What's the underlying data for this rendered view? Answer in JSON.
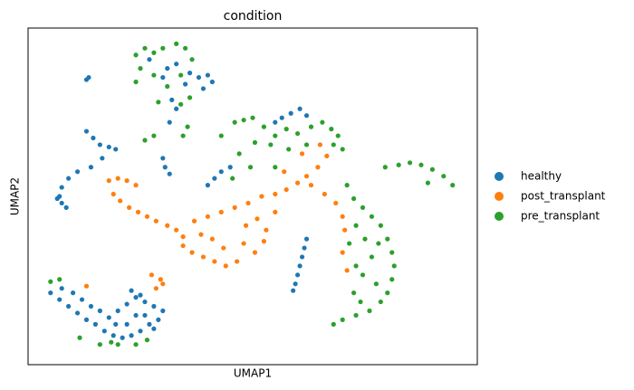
{
  "chart_data": {
    "type": "scatter",
    "title": "condition",
    "x_label": "UMAP1",
    "y_label": "UMAP2",
    "xlim": [
      0,
      20
    ],
    "ylim": [
      0,
      15
    ],
    "legend": "right",
    "series": [
      {
        "name": "healthy",
        "color": "#1f77b4",
        "x": [
          1.0,
          1.4,
          1.8,
          2.2,
          2.6,
          3.0,
          3.4,
          3.8,
          4.2,
          4.6,
          5.0,
          5.4,
          5.8,
          6.0,
          5.6,
          5.2,
          4.8,
          4.4,
          4.0,
          3.6,
          3.2,
          2.8,
          2.4,
          2.0,
          1.5,
          4.8,
          5.2,
          4.4,
          3.9,
          5.6,
          4.6,
          5.0,
          6.2,
          6.6,
          7.2,
          7.6,
          8.0,
          8.2,
          7.8,
          7.0,
          6.0,
          5.4,
          6.4,
          6.3,
          6.6,
          2.7,
          2.6,
          2.6,
          2.9,
          3.2,
          3.6,
          3.9,
          3.3,
          2.8,
          2.2,
          1.8,
          1.5,
          1.4,
          1.5,
          1.7,
          1.3,
          6.1,
          6.3,
          6.0,
          8.6,
          8.3,
          8.0,
          9.0,
          12.4,
          12.3,
          12.2,
          12.1,
          12.0,
          11.9,
          11.8,
          11.3,
          11.7,
          12.1,
          12.4,
          11.0
        ],
        "y": [
          3.2,
          2.9,
          2.6,
          2.3,
          2.0,
          1.8,
          1.5,
          1.3,
          1.2,
          1.3,
          1.5,
          1.8,
          2.0,
          2.4,
          2.6,
          2.8,
          3.0,
          2.7,
          2.4,
          2.1,
          2.4,
          2.6,
          2.9,
          3.2,
          3.4,
          2.2,
          2.2,
          1.8,
          1.8,
          1.6,
          3.3,
          3.1,
          13.2,
          13.4,
          13.0,
          12.8,
          12.9,
          12.6,
          12.3,
          12.5,
          12.8,
          13.6,
          11.8,
          10.8,
          11.4,
          12.8,
          12.7,
          10.4,
          10.1,
          9.8,
          9.7,
          9.6,
          9.2,
          8.8,
          8.6,
          8.3,
          7.9,
          7.5,
          7.2,
          7.0,
          7.4,
          8.8,
          8.5,
          9.2,
          8.6,
          8.3,
          8.0,
          8.8,
          5.6,
          5.2,
          4.8,
          4.4,
          4.0,
          3.6,
          3.3,
          11.0,
          11.2,
          11.4,
          11.1,
          10.8
        ]
      },
      {
        "name": "post_transplant",
        "color": "#ff7f0e",
        "x": [
          3.6,
          4.0,
          4.4,
          4.8,
          3.8,
          4.1,
          4.5,
          4.9,
          5.3,
          5.7,
          6.2,
          6.6,
          6.9,
          6.9,
          7.3,
          7.8,
          8.3,
          8.8,
          9.3,
          8.7,
          8.2,
          7.7,
          7.4,
          8.0,
          8.6,
          9.2,
          9.8,
          10.4,
          11.0,
          11.5,
          12.0,
          12.4,
          12.9,
          13.3,
          13.0,
          12.6,
          13.2,
          13.7,
          14.0,
          14.1,
          14.0,
          14.2,
          9.7,
          10.2,
          10.6,
          11.0,
          9.6,
          10.1,
          10.5,
          5.5,
          5.9,
          5.7,
          6.0,
          2.6,
          11.4,
          12.2
        ],
        "y": [
          8.2,
          8.3,
          8.2,
          8.0,
          7.6,
          7.3,
          7.0,
          6.8,
          6.6,
          6.4,
          6.2,
          6.0,
          5.7,
          5.3,
          5.0,
          4.8,
          4.6,
          4.4,
          4.6,
          5.2,
          5.6,
          5.8,
          6.4,
          6.6,
          6.8,
          7.0,
          7.2,
          7.5,
          7.6,
          7.8,
          8.1,
          8.4,
          8.8,
          9.3,
          9.8,
          8.0,
          7.6,
          7.2,
          6.6,
          6.0,
          5.0,
          4.2,
          6.2,
          6.5,
          6.0,
          6.8,
          5.4,
          5.0,
          5.5,
          4.0,
          3.8,
          3.4,
          3.6,
          3.5,
          8.6,
          9.4
        ]
      },
      {
        "name": "pre_transplant",
        "color": "#2ca02c",
        "x": [
          4.8,
          5.2,
          5.6,
          6.0,
          6.6,
          7.0,
          7.3,
          6.8,
          6.2,
          5.6,
          5.0,
          4.8,
          5.8,
          6.8,
          7.2,
          7.1,
          6.9,
          5.2,
          5.6,
          9.2,
          9.6,
          10.0,
          10.5,
          11.0,
          11.5,
          12.0,
          12.6,
          13.1,
          13.5,
          13.8,
          14.0,
          13.6,
          12.4,
          11.6,
          10.8,
          10.1,
          9.4,
          8.6,
          9.1,
          9.9,
          11.0,
          16.5,
          17.0,
          17.5,
          18.0,
          18.5,
          18.9,
          17.8,
          15.9,
          14.2,
          14.5,
          14.9,
          15.3,
          15.7,
          16.0,
          16.2,
          16.3,
          16.2,
          16.0,
          15.7,
          15.2,
          14.6,
          14.0,
          13.6,
          14.5,
          14.9,
          15.3,
          15.0,
          14.6,
          15.5,
          14.8,
          15.6,
          14.3,
          14.6,
          1.0,
          1.4,
          2.3,
          3.2,
          4.0,
          4.8,
          5.3,
          3.7
        ],
        "y": [
          13.8,
          14.1,
          13.9,
          14.1,
          14.3,
          14.1,
          13.6,
          12.9,
          12.4,
          12.9,
          13.2,
          12.6,
          11.7,
          11.6,
          11.9,
          10.6,
          10.2,
          10.0,
          10.2,
          10.8,
          10.9,
          11.0,
          10.6,
          10.2,
          10.5,
          10.3,
          10.6,
          10.8,
          10.5,
          10.2,
          9.6,
          9.8,
          9.8,
          9.6,
          9.8,
          9.9,
          9.4,
          10.2,
          8.3,
          8.8,
          8.8,
          8.9,
          9.0,
          8.9,
          8.7,
          8.4,
          8.0,
          8.1,
          8.8,
          8.0,
          7.4,
          7.0,
          6.6,
          6.2,
          5.6,
          5.0,
          4.4,
          3.8,
          3.2,
          2.8,
          2.4,
          2.2,
          2.0,
          1.8,
          3.2,
          4.0,
          4.8,
          5.6,
          6.2,
          3.6,
          2.8,
          5.4,
          5.4,
          4.4,
          3.7,
          3.8,
          1.2,
          0.9,
          0.9,
          0.9,
          1.1,
          1.0
        ]
      }
    ]
  }
}
